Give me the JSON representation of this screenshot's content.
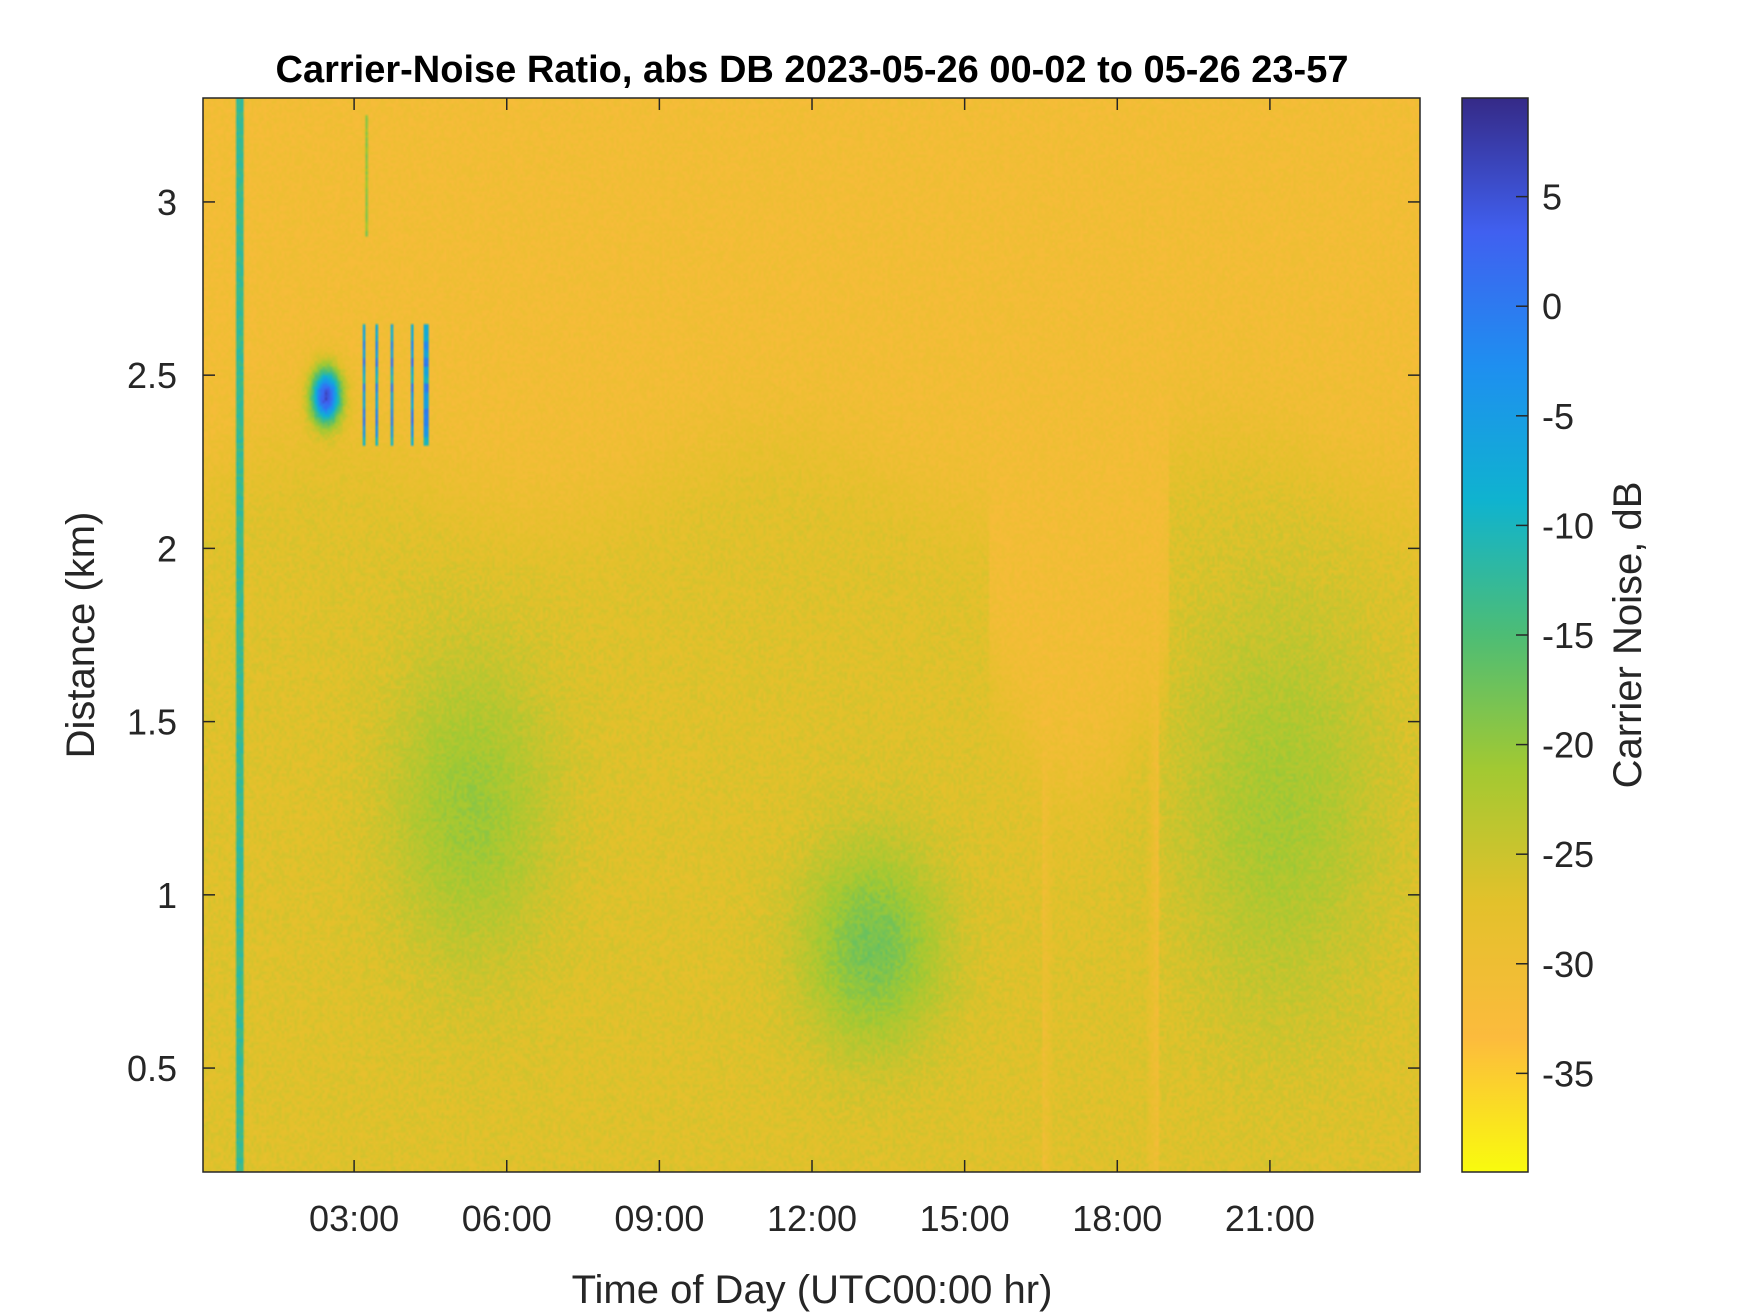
{
  "chart_data": {
    "type": "heatmap",
    "title": "Carrier-Noise Ratio, abs DB 2023-05-26 00-02 to 05-26 23-57",
    "xlabel": "Time of Day (UTC00:00 hr)",
    "ylabel": "Distance (km)",
    "colorbar_label": "Carrier Noise, dB",
    "xlim": [
      0.03,
      23.95
    ],
    "ylim": [
      0.2,
      3.3
    ],
    "clim": [
      -39.5,
      9.5
    ],
    "x_ticks": [
      {
        "value": 3,
        "label": "03:00"
      },
      {
        "value": 6,
        "label": "06:00"
      },
      {
        "value": 9,
        "label": "09:00"
      },
      {
        "value": 12,
        "label": "12:00"
      },
      {
        "value": 15,
        "label": "15:00"
      },
      {
        "value": 18,
        "label": "18:00"
      },
      {
        "value": 21,
        "label": "21:00"
      }
    ],
    "y_ticks": [
      {
        "value": 0.5,
        "label": "0.5"
      },
      {
        "value": 1,
        "label": "1"
      },
      {
        "value": 1.5,
        "label": "1.5"
      },
      {
        "value": 2,
        "label": "2"
      },
      {
        "value": 2.5,
        "label": "2.5"
      },
      {
        "value": 3,
        "label": "3"
      }
    ],
    "colorbar_ticks": [
      {
        "value": 5,
        "label": "5"
      },
      {
        "value": 0,
        "label": "0"
      },
      {
        "value": -5,
        "label": "-5"
      },
      {
        "value": -10,
        "label": "-10"
      },
      {
        "value": -15,
        "label": "-15"
      },
      {
        "value": -20,
        "label": "-20"
      },
      {
        "value": -25,
        "label": "-25"
      },
      {
        "value": -30,
        "label": "-30"
      },
      {
        "value": -35,
        "label": "-35"
      }
    ],
    "background_value": -31,
    "colormap": "parula",
    "colormap_stops": [
      "#f9fb0e",
      "#fcbb3d",
      "#e3c12b",
      "#a2c932",
      "#4dbd75",
      "#0fb3cf",
      "#1e8ff0",
      "#4060f0",
      "#352a87"
    ],
    "features": [
      {
        "name": "vertical streak",
        "x": [
          0.7,
          0.85
        ],
        "y": [
          0.2,
          3.3
        ],
        "value": -13
      },
      {
        "name": "lower layer",
        "x": [
          0.0,
          24.0
        ],
        "y": [
          0.2,
          2.2
        ],
        "value": -27
      },
      {
        "name": "morning plume",
        "x": [
          3.5,
          7.0
        ],
        "y": [
          0.9,
          1.6
        ],
        "value": -20
      },
      {
        "name": "midday plume",
        "x": [
          11.5,
          15.0
        ],
        "y": [
          0.6,
          1.0
        ],
        "value": -17
      },
      {
        "name": "evening plume",
        "x": [
          19.0,
          23.5
        ],
        "y": [
          0.7,
          2.0
        ],
        "value": -21
      },
      {
        "name": "clear gap",
        "x": [
          16.5,
          18.8
        ],
        "y": [
          0.2,
          2.2
        ],
        "value": -31
      },
      {
        "name": "cloud patch",
        "x": [
          2.0,
          2.8
        ],
        "y": [
          2.35,
          2.55
        ],
        "value": 5
      },
      {
        "name": "cloud streaks",
        "x": [
          3.0,
          4.5
        ],
        "y": [
          2.3,
          2.65
        ],
        "value": 0
      },
      {
        "name": "high streaks",
        "x": [
          3.0,
          3.5
        ],
        "y": [
          2.9,
          3.25
        ],
        "value": -20
      }
    ]
  }
}
